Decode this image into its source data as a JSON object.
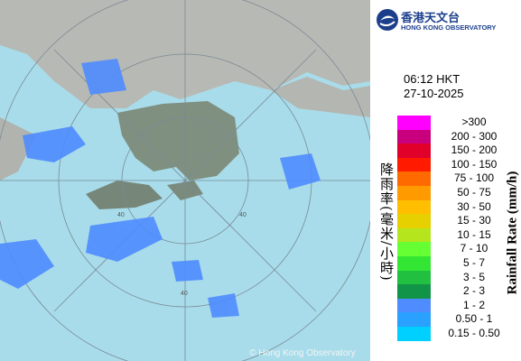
{
  "header": {
    "logo_chinese": "香港天文台",
    "logo_english": "HONG KONG OBSERVATORY"
  },
  "time": "06:12 HKT",
  "date": "27-10-2025",
  "legend": {
    "title_chinese": "降雨率(毫米/小時)",
    "title_english": "Rainfall Rate (mm/h)",
    "items": [
      {
        "label": ">300",
        "color": "#ff00ff"
      },
      {
        "label": "200 - 300",
        "color": "#c8007d"
      },
      {
        "label": "150 - 200",
        "color": "#e0002a"
      },
      {
        "label": "100 - 150",
        "color": "#ff1a00"
      },
      {
        "label": "75 - 100",
        "color": "#ff6a00"
      },
      {
        "label": "50 - 75",
        "color": "#ff9a00"
      },
      {
        "label": "30 - 50",
        "color": "#ffbe00"
      },
      {
        "label": "15 - 30",
        "color": "#e6d000"
      },
      {
        "label": "10 - 15",
        "color": "#b5e61d"
      },
      {
        "label": "7 - 10",
        "color": "#66ff33"
      },
      {
        "label": "5 - 7",
        "color": "#33e633"
      },
      {
        "label": "3 - 5",
        "color": "#22c040"
      },
      {
        "label": "2 - 3",
        "color": "#119448"
      },
      {
        "label": "1 - 2",
        "color": "#4f8cff"
      },
      {
        "label": "0.50 - 1",
        "color": "#2aa0ff"
      },
      {
        "label": "0.15 - 0.50",
        "color": "#00d0ff"
      }
    ]
  },
  "range_ring_labels": [
    "40",
    "40",
    "40"
  ],
  "copyright": "© Hong Kong Observatory"
}
